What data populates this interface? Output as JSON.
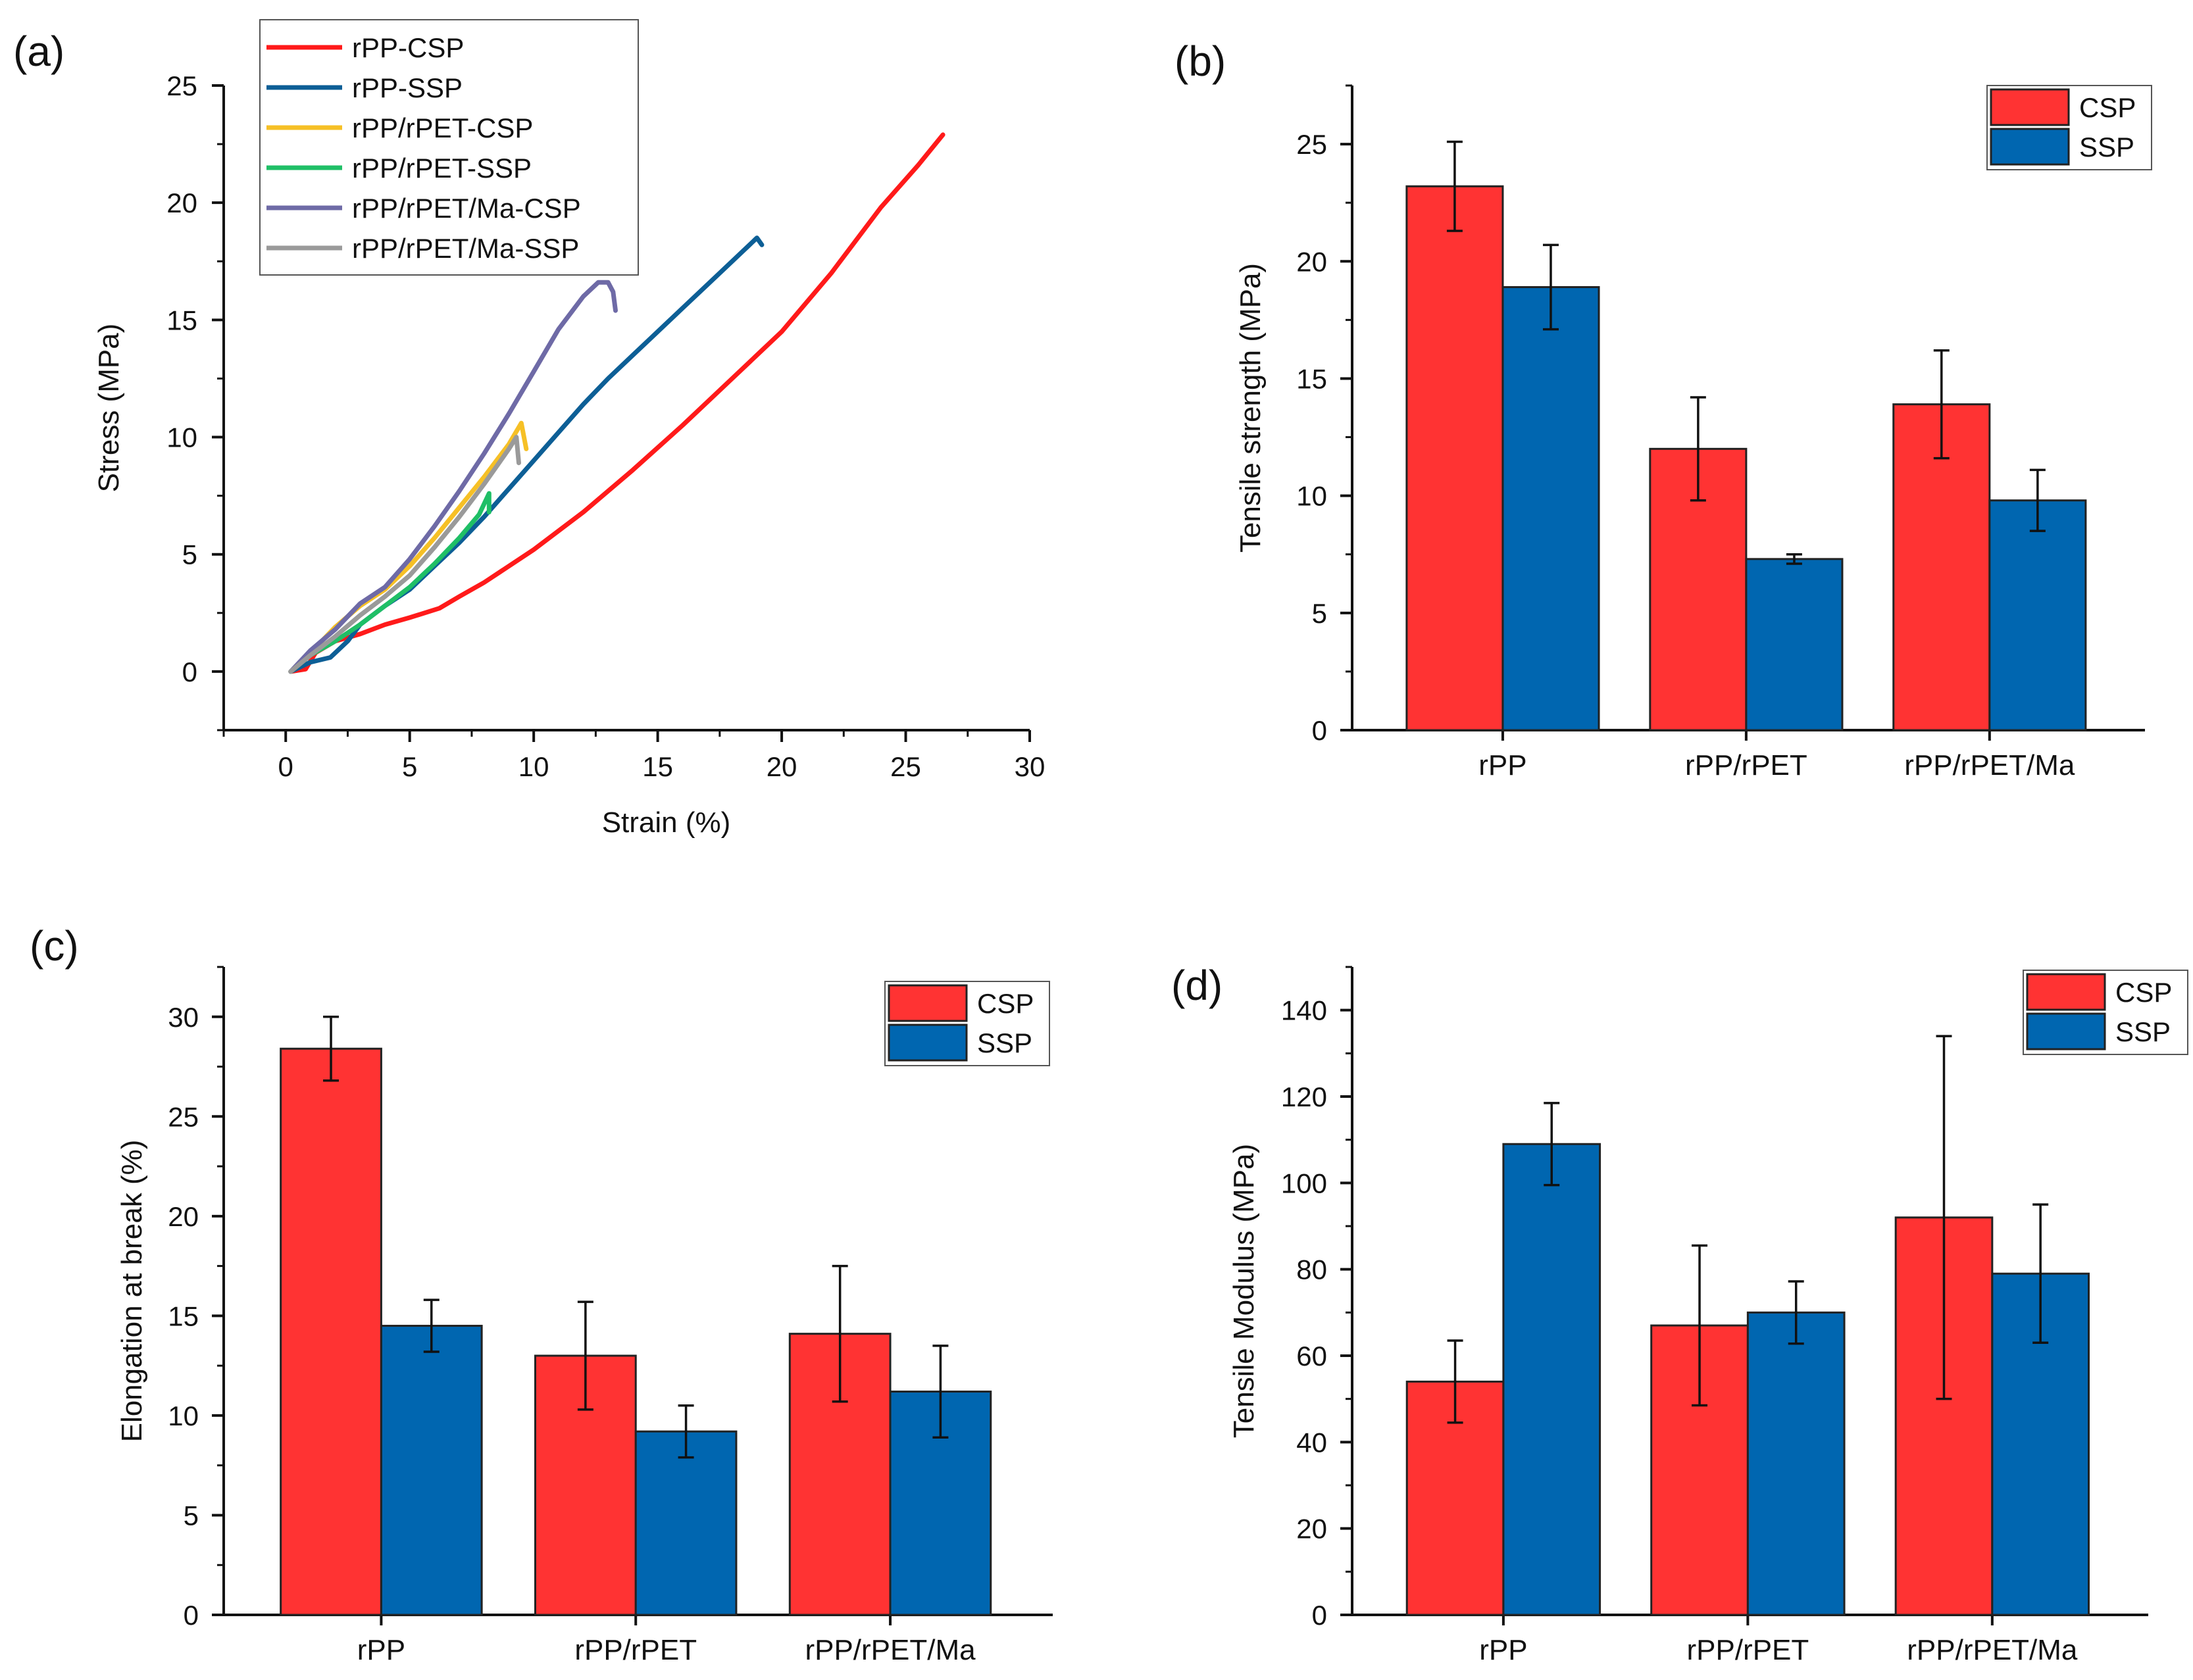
{
  "chart_data": [
    {
      "panel_label": "(a)",
      "type": "line",
      "xlabel": "Strain (%)",
      "ylabel": "Stress (MPa)",
      "xlim": [
        -2.5,
        30
      ],
      "ylim": [
        -2.5,
        25
      ],
      "xticks": [
        0,
        5,
        10,
        15,
        20,
        25,
        30
      ],
      "yticks": [
        0,
        5,
        10,
        15,
        20,
        25
      ],
      "legend_position": "top-center",
      "series": [
        {
          "name": "rPP-CSP",
          "color": "#ff1a1a",
          "x": [
            0.2,
            0.8,
            1.2,
            2.0,
            3.0,
            4.0,
            5.0,
            6.2,
            7.0,
            8.0,
            10.0,
            12.0,
            14.0,
            16.0,
            18.0,
            20.0,
            22.0,
            24.0,
            25.5,
            26.5
          ],
          "y": [
            0.0,
            0.1,
            0.8,
            1.3,
            1.6,
            2.0,
            2.3,
            2.7,
            3.2,
            3.8,
            5.2,
            6.8,
            8.6,
            10.5,
            12.5,
            14.5,
            17.0,
            19.8,
            21.6,
            22.9
          ]
        },
        {
          "name": "rPP-SSP",
          "color": "#0d5f96",
          "x": [
            0.2,
            1.0,
            1.8,
            2.5,
            3.0,
            4.0,
            5.0,
            6.0,
            7.0,
            8.0,
            9.0,
            10.0,
            11.0,
            12.0,
            13.0,
            14.0,
            15.0,
            16.0,
            17.0,
            18.0,
            18.6,
            19.0,
            19.2
          ],
          "y": [
            0.0,
            0.4,
            0.6,
            1.3,
            2.0,
            2.8,
            3.5,
            4.5,
            5.5,
            6.6,
            7.8,
            9.0,
            10.2,
            11.4,
            12.5,
            13.5,
            14.5,
            15.5,
            16.5,
            17.5,
            18.1,
            18.5,
            18.2
          ]
        },
        {
          "name": "rPP/rPET-CSP",
          "color": "#f6c026",
          "x": [
            0.2,
            1.0,
            2.0,
            3.0,
            4.0,
            5.0,
            6.0,
            7.0,
            8.0,
            9.0,
            9.5,
            9.7
          ],
          "y": [
            0.0,
            0.8,
            1.9,
            2.8,
            3.5,
            4.5,
            5.7,
            7.0,
            8.3,
            9.7,
            10.6,
            9.5
          ]
        },
        {
          "name": "rPP/rPET-SSP",
          "color": "#1fbf66",
          "x": [
            0.2,
            1.0,
            2.0,
            3.0,
            4.0,
            5.0,
            6.0,
            7.0,
            7.8,
            8.2,
            8.2
          ],
          "y": [
            0.0,
            0.7,
            1.3,
            2.0,
            2.8,
            3.6,
            4.6,
            5.7,
            6.7,
            7.6,
            6.8
          ]
        },
        {
          "name": "rPP/rPET/Ma-CSP",
          "color": "#6e6aa6",
          "x": [
            0.2,
            1.0,
            2.0,
            3.0,
            4.0,
            5.0,
            6.0,
            7.0,
            8.0,
            9.0,
            10.0,
            11.0,
            12.0,
            12.6,
            13.0,
            13.2,
            13.3
          ],
          "y": [
            0.0,
            0.9,
            1.8,
            2.9,
            3.6,
            4.8,
            6.2,
            7.7,
            9.3,
            11.0,
            12.8,
            14.6,
            16.0,
            16.6,
            16.6,
            16.2,
            15.4
          ]
        },
        {
          "name": "rPP/rPET/Ma-SSP",
          "color": "#9a9a9a",
          "x": [
            0.2,
            1.0,
            2.0,
            3.0,
            4.0,
            5.0,
            6.0,
            7.0,
            8.0,
            9.0,
            9.3,
            9.4
          ],
          "y": [
            0.0,
            0.7,
            1.5,
            2.4,
            3.2,
            4.1,
            5.3,
            6.6,
            8.0,
            9.5,
            10.0,
            8.9
          ]
        }
      ]
    },
    {
      "panel_label": "(b)",
      "type": "bar",
      "ylabel": "Tensile strength (MPa)",
      "ylim": [
        0,
        27.5
      ],
      "yticks": [
        0,
        5,
        10,
        15,
        20,
        25
      ],
      "categories": [
        "rPP",
        "rPP/rPET",
        "rPP/rPET/Ma"
      ],
      "legend_position": "top-right",
      "series": [
        {
          "name": "CSP",
          "color": "#ff3333",
          "values": [
            23.2,
            12.0,
            13.9
          ],
          "errors": [
            1.9,
            2.2,
            2.3
          ]
        },
        {
          "name": "SSP",
          "color": "#0066b0",
          "values": [
            18.9,
            7.3,
            9.8
          ],
          "errors": [
            1.8,
            0.2,
            1.3
          ]
        }
      ]
    },
    {
      "panel_label": "(c)",
      "type": "bar",
      "ylabel": "Elongation at break (%)",
      "ylim": [
        0,
        32.5
      ],
      "yticks": [
        0,
        5,
        10,
        15,
        20,
        25,
        30
      ],
      "categories": [
        "rPP",
        "rPP/rPET",
        "rPP/rPET/Ma"
      ],
      "legend_position": "top-right",
      "series": [
        {
          "name": "CSP",
          "color": "#ff3333",
          "values": [
            28.4,
            13.0,
            14.1
          ],
          "errors": [
            1.6,
            2.7,
            3.4
          ]
        },
        {
          "name": "SSP",
          "color": "#0066b0",
          "values": [
            14.5,
            9.2,
            11.2
          ],
          "errors": [
            1.3,
            1.3,
            2.3
          ]
        }
      ]
    },
    {
      "panel_label": "(d)",
      "type": "bar",
      "ylabel": "Tensile Modulus (MPa)",
      "ylim": [
        0,
        150
      ],
      "yticks": [
        0,
        20,
        40,
        60,
        80,
        100,
        120,
        140
      ],
      "categories": [
        "rPP",
        "rPP/rPET",
        "rPP/rPET/Ma"
      ],
      "legend_position": "top-right",
      "series": [
        {
          "name": "CSP",
          "color": "#ff3333",
          "values": [
            54,
            67,
            92
          ],
          "errors": [
            9.5,
            18.5,
            42
          ]
        },
        {
          "name": "SSP",
          "color": "#0066b0",
          "values": [
            109,
            70,
            79
          ],
          "errors": [
            9.5,
            7.2,
            16
          ]
        }
      ]
    }
  ]
}
